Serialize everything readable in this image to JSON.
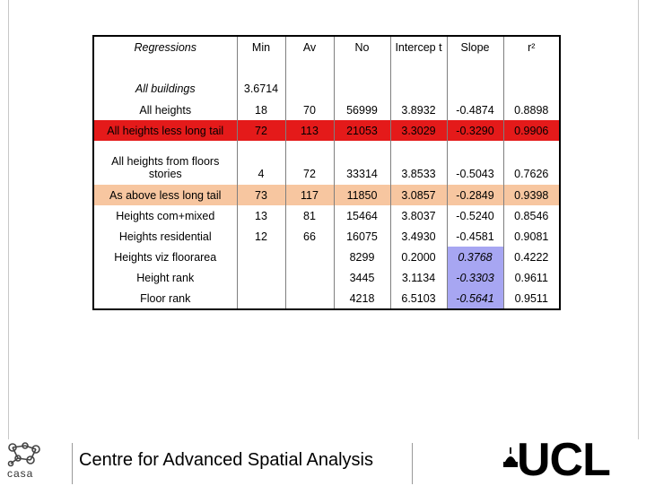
{
  "table": {
    "headers": [
      "Regressions",
      "Min",
      "Av",
      "No",
      "Intercep t",
      "Slope",
      "r²"
    ],
    "rows": [
      {
        "label": "All buildings",
        "min": "3.6714",
        "av": "",
        "no": "",
        "intercept": "",
        "slope": "",
        "r2": ""
      },
      {
        "label": "All heights",
        "min": "18",
        "av": "70",
        "no": "56999",
        "intercept": "3.8932",
        "slope": "-0.4874",
        "r2": "0.8898"
      },
      {
        "label": "All heights less long tail",
        "min": "72",
        "av": "113",
        "no": "21053",
        "intercept": "3.3029",
        "slope": "-0.3290",
        "r2": "0.9906"
      },
      {
        "label": "All heights from floors stories",
        "min": "4",
        "av": "72",
        "no": "33314",
        "intercept": "3.8533",
        "slope": "-0.5043",
        "r2": "0.7626"
      },
      {
        "label": "As above less long tail",
        "min": "73",
        "av": "117",
        "no": "11850",
        "intercept": "3.0857",
        "slope": "-0.2849",
        "r2": "0.9398"
      },
      {
        "label": "Heights com+mixed",
        "min": "13",
        "av": "81",
        "no": "15464",
        "intercept": "3.8037",
        "slope": "-0.5240",
        "r2": "0.8546"
      },
      {
        "label": "Heights residential",
        "min": "12",
        "av": "66",
        "no": "16075",
        "intercept": "3.4930",
        "slope": "-0.4581",
        "r2": "0.9081"
      },
      {
        "label": "Heights viz floorarea",
        "min": "",
        "av": "",
        "no": "8299",
        "intercept": "0.2000",
        "slope": "0.3768",
        "r2": "0.4222"
      },
      {
        "label": "Height rank",
        "min": "",
        "av": "",
        "no": "3445",
        "intercept": "3.1134",
        "slope": "-0.3303",
        "r2": "0.9611"
      },
      {
        "label": "Floor rank",
        "min": "",
        "av": "",
        "no": "4218",
        "intercept": "6.5103",
        "slope": "-0.5641",
        "r2": "0.9511"
      }
    ]
  },
  "colors": {
    "red_row": "#e41a1a",
    "orange_row": "#f7c6a0",
    "purple_cell": "#a7a6f2"
  },
  "footer": {
    "title": "Centre for Advanced Spatial Analysis",
    "casa_logo_text": "casa",
    "ucl_logo_text": "UCL"
  }
}
